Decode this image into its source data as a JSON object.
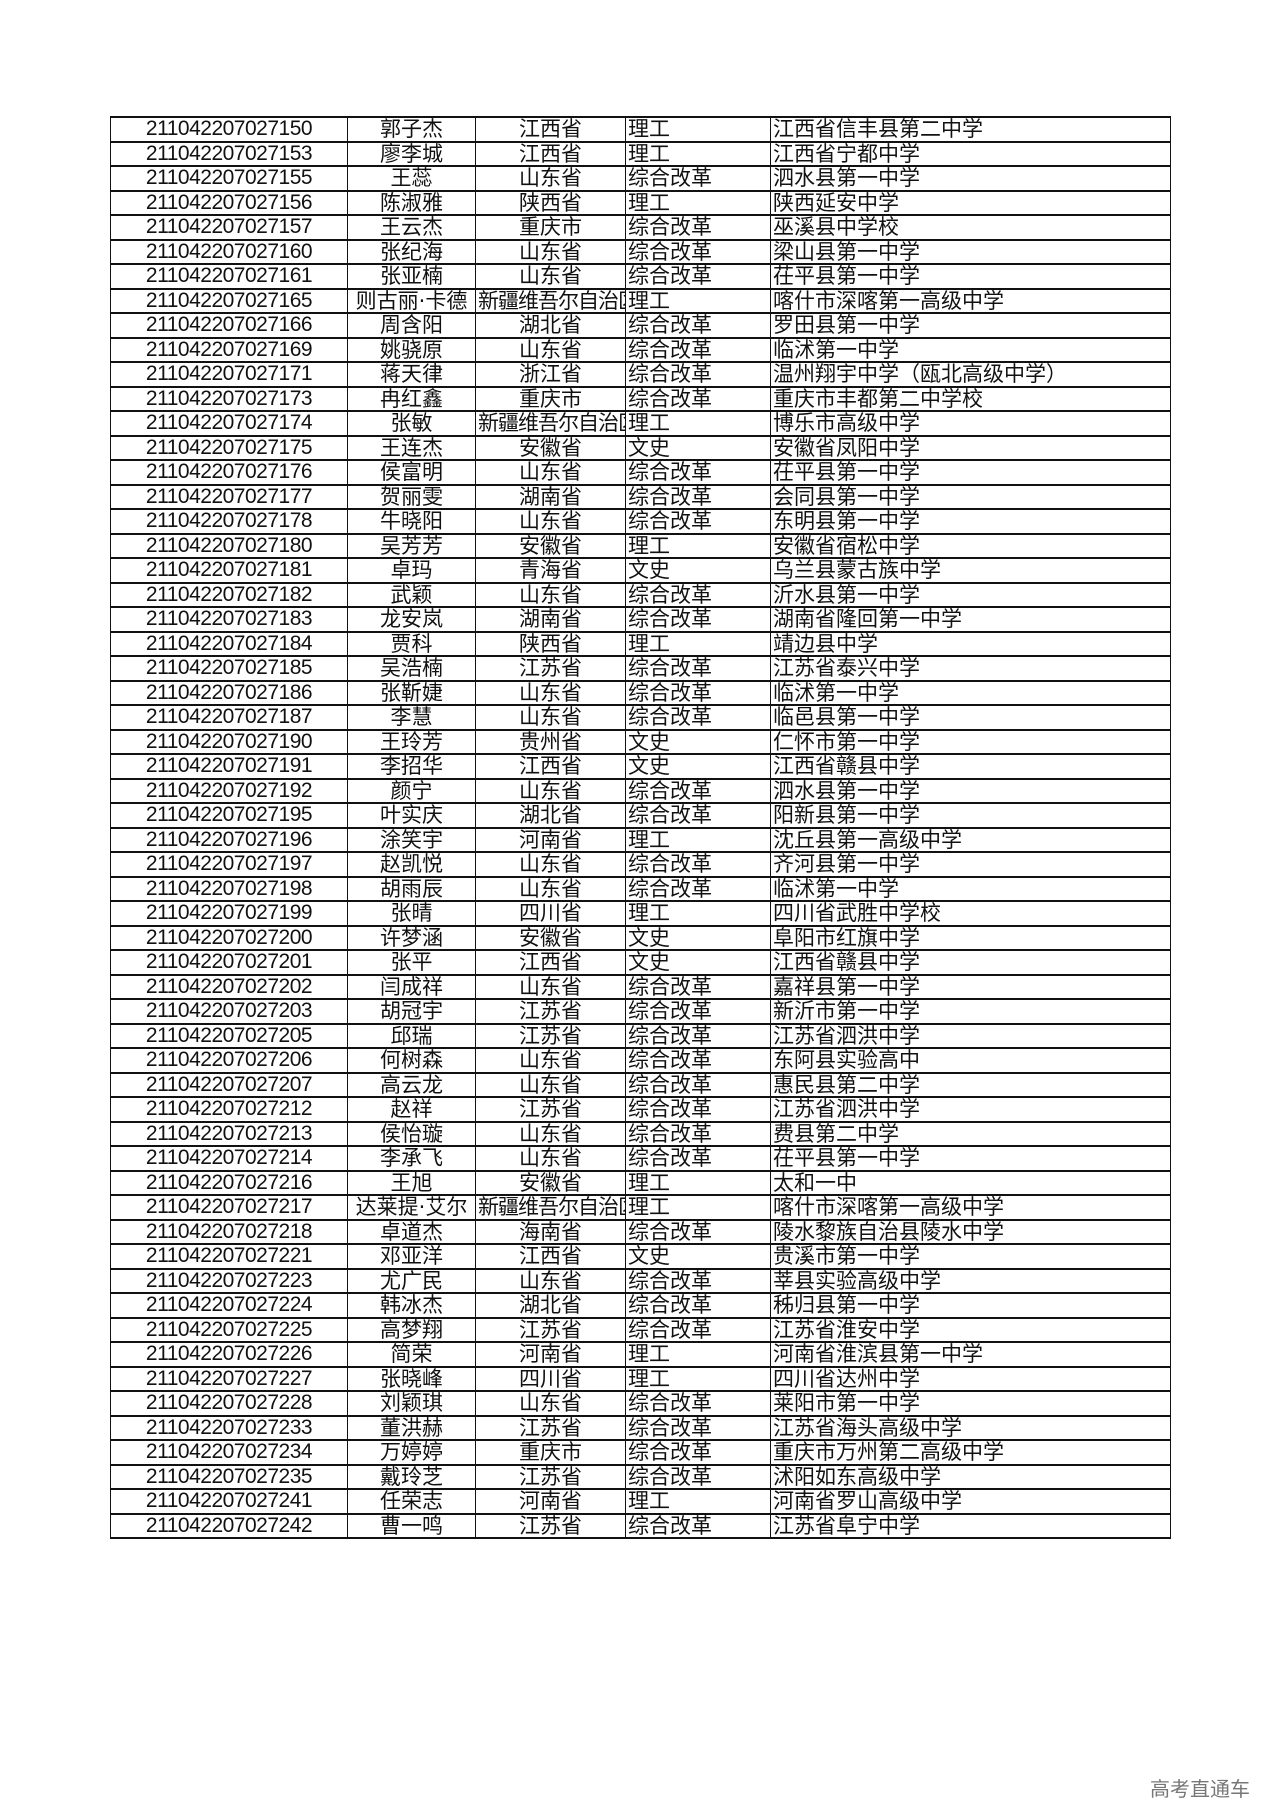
{
  "rows": [
    [
      "211042207027150",
      "郭子杰",
      "江西省",
      "理工",
      "江西省信丰县第二中学"
    ],
    [
      "211042207027153",
      "廖李城",
      "江西省",
      "理工",
      "江西省宁都中学"
    ],
    [
      "211042207027155",
      "王蕊",
      "山东省",
      "综合改革",
      "泗水县第一中学"
    ],
    [
      "211042207027156",
      "陈淑雅",
      "陕西省",
      "理工",
      "陕西延安中学"
    ],
    [
      "211042207027157",
      "王云杰",
      "重庆市",
      "综合改革",
      "巫溪县中学校"
    ],
    [
      "211042207027160",
      "张纪海",
      "山东省",
      "综合改革",
      "梁山县第一中学"
    ],
    [
      "211042207027161",
      "张亚楠",
      "山东省",
      "综合改革",
      "茌平县第一中学"
    ],
    [
      "211042207027165",
      "则古丽·卡德",
      "新疆维吾尔自治区",
      "理工",
      "喀什市深喀第一高级中学"
    ],
    [
      "211042207027166",
      "周含阳",
      "湖北省",
      "综合改革",
      "罗田县第一中学"
    ],
    [
      "211042207027169",
      "姚骁原",
      "山东省",
      "综合改革",
      "临沭第一中学"
    ],
    [
      "211042207027171",
      "蒋天律",
      "浙江省",
      "综合改革",
      "温州翔宇中学（瓯北高级中学）"
    ],
    [
      "211042207027173",
      "冉红鑫",
      "重庆市",
      "综合改革",
      "重庆市丰都第二中学校"
    ],
    [
      "211042207027174",
      "张敏",
      "新疆维吾尔自治区",
      "理工",
      "博乐市高级中学"
    ],
    [
      "211042207027175",
      "王连杰",
      "安徽省",
      "文史",
      "安徽省凤阳中学"
    ],
    [
      "211042207027176",
      "侯富明",
      "山东省",
      "综合改革",
      "茌平县第一中学"
    ],
    [
      "211042207027177",
      "贺丽雯",
      "湖南省",
      "综合改革",
      "会同县第一中学"
    ],
    [
      "211042207027178",
      "牛晓阳",
      "山东省",
      "综合改革",
      "东明县第一中学"
    ],
    [
      "211042207027180",
      "吴芳芳",
      "安徽省",
      "理工",
      "安徽省宿松中学"
    ],
    [
      "211042207027181",
      "卓玛",
      "青海省",
      "文史",
      "乌兰县蒙古族中学"
    ],
    [
      "211042207027182",
      "武颖",
      "山东省",
      "综合改革",
      "沂水县第一中学"
    ],
    [
      "211042207027183",
      "龙安岚",
      "湖南省",
      "综合改革",
      "湖南省隆回第一中学"
    ],
    [
      "211042207027184",
      "贾科",
      "陕西省",
      "理工",
      "靖边县中学"
    ],
    [
      "211042207027185",
      "吴浩楠",
      "江苏省",
      "综合改革",
      "江苏省泰兴中学"
    ],
    [
      "211042207027186",
      "张靳婕",
      "山东省",
      "综合改革",
      "临沭第一中学"
    ],
    [
      "211042207027187",
      "李慧",
      "山东省",
      "综合改革",
      "临邑县第一中学"
    ],
    [
      "211042207027190",
      "王玲芳",
      "贵州省",
      "文史",
      "仁怀市第一中学"
    ],
    [
      "211042207027191",
      "李招华",
      "江西省",
      "文史",
      "江西省赣县中学"
    ],
    [
      "211042207027192",
      "颜宁",
      "山东省",
      "综合改革",
      "泗水县第一中学"
    ],
    [
      "211042207027195",
      "叶实庆",
      "湖北省",
      "综合改革",
      "阳新县第一中学"
    ],
    [
      "211042207027196",
      "涂笑宇",
      "河南省",
      "理工",
      "沈丘县第一高级中学"
    ],
    [
      "211042207027197",
      "赵凯悦",
      "山东省",
      "综合改革",
      "齐河县第一中学"
    ],
    [
      "211042207027198",
      "胡雨辰",
      "山东省",
      "综合改革",
      "临沭第一中学"
    ],
    [
      "211042207027199",
      "张晴",
      "四川省",
      "理工",
      "四川省武胜中学校"
    ],
    [
      "211042207027200",
      "许梦涵",
      "安徽省",
      "文史",
      "阜阳市红旗中学"
    ],
    [
      "211042207027201",
      "张平",
      "江西省",
      "文史",
      "江西省赣县中学"
    ],
    [
      "211042207027202",
      "闫成祥",
      "山东省",
      "综合改革",
      "嘉祥县第一中学"
    ],
    [
      "211042207027203",
      "胡冠宇",
      "江苏省",
      "综合改革",
      "新沂市第一中学"
    ],
    [
      "211042207027205",
      "邱瑞",
      "江苏省",
      "综合改革",
      "江苏省泗洪中学"
    ],
    [
      "211042207027206",
      "何树森",
      "山东省",
      "综合改革",
      "东阿县实验高中"
    ],
    [
      "211042207027207",
      "高云龙",
      "山东省",
      "综合改革",
      "惠民县第二中学"
    ],
    [
      "211042207027212",
      "赵祥",
      "江苏省",
      "综合改革",
      "江苏省泗洪中学"
    ],
    [
      "211042207027213",
      "侯怡璇",
      "山东省",
      "综合改革",
      "费县第二中学"
    ],
    [
      "211042207027214",
      "李承飞",
      "山东省",
      "综合改革",
      "茌平县第一中学"
    ],
    [
      "211042207027216",
      "王旭",
      "安徽省",
      "理工",
      "太和一中"
    ],
    [
      "211042207027217",
      "达莱提·艾尔",
      "新疆维吾尔自治区",
      "理工",
      "喀什市深喀第一高级中学"
    ],
    [
      "211042207027218",
      "卓道杰",
      "海南省",
      "综合改革",
      "陵水黎族自治县陵水中学"
    ],
    [
      "211042207027221",
      "邓亚洋",
      "江西省",
      "文史",
      "贵溪市第一中学"
    ],
    [
      "211042207027223",
      "尤广民",
      "山东省",
      "综合改革",
      "莘县实验高级中学"
    ],
    [
      "211042207027224",
      "韩冰杰",
      "湖北省",
      "综合改革",
      "秭归县第一中学"
    ],
    [
      "211042207027225",
      "高梦翔",
      "江苏省",
      "综合改革",
      "江苏省淮安中学"
    ],
    [
      "211042207027226",
      "简荣",
      "河南省",
      "理工",
      "河南省淮滨县第一中学"
    ],
    [
      "211042207027227",
      "张晓峰",
      "四川省",
      "理工",
      "四川省达州中学"
    ],
    [
      "211042207027228",
      "刘颖琪",
      "山东省",
      "综合改革",
      "莱阳市第一中学"
    ],
    [
      "211042207027233",
      "董洪赫",
      "江苏省",
      "综合改革",
      "江苏省海头高级中学"
    ],
    [
      "211042207027234",
      "万婷婷",
      "重庆市",
      "综合改革",
      "重庆市万州第二高级中学"
    ],
    [
      "211042207027235",
      "戴玲芝",
      "江苏省",
      "综合改革",
      "沭阳如东高级中学"
    ],
    [
      "211042207027241",
      "任荣志",
      "河南省",
      "理工",
      "河南省罗山高级中学"
    ],
    [
      "211042207027242",
      "曹一鸣",
      "江苏省",
      "综合改革",
      "江苏省阜宁中学"
    ]
  ],
  "watermark": "高考直通车"
}
